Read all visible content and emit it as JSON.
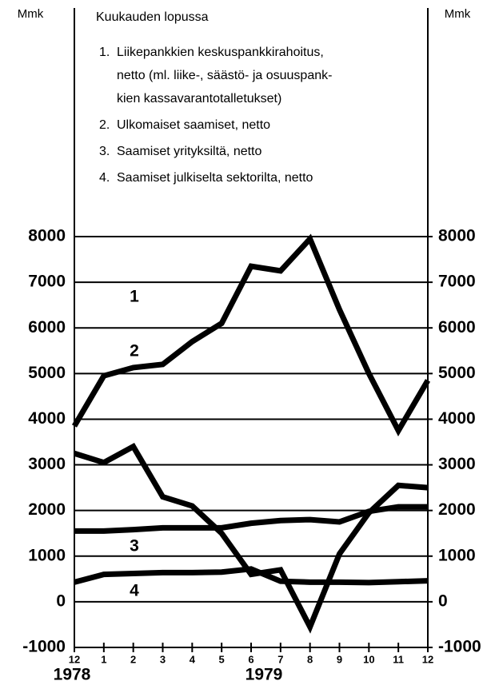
{
  "chart_data": {
    "type": "line",
    "legend_title": "Kuukauden lopussa",
    "legend_items": [
      {
        "number": "1.",
        "lines": [
          "Liikepankkien keskuspankkirahoitus,",
          "netto (ml. liike-, säästö- ja osuuspank-",
          "kien kassavarantotalletukset)"
        ]
      },
      {
        "number": "2.",
        "lines": [
          "Ulkomaiset saamiset, netto"
        ]
      },
      {
        "number": "3.",
        "lines": [
          "Saamiset yrityksiltä, netto"
        ]
      },
      {
        "number": "4.",
        "lines": [
          "Saamiset julkiselta sektorilta, netto"
        ]
      }
    ],
    "ylabel": "Mmk",
    "y2label": "Mmk",
    "categories": [
      "12",
      "1",
      "2",
      "3",
      "4",
      "5",
      "6",
      "7",
      "8",
      "9",
      "10",
      "11",
      "12"
    ],
    "year_labels": [
      "1978",
      "1979"
    ],
    "series": [
      {
        "name": "1",
        "color": "#000000",
        "values": [
          3250,
          3050,
          3400,
          2300,
          2100,
          1500,
          600,
          700,
          -550,
          1050,
          1950,
          2550,
          2500
        ]
      },
      {
        "name": "2",
        "color": "#000000",
        "values": [
          3850,
          4950,
          5130,
          5200,
          5700,
          6100,
          7350,
          7250,
          7950,
          6400,
          5000,
          3750,
          4850
        ]
      },
      {
        "name": "3",
        "color": "#000000",
        "values": [
          1550,
          1550,
          1580,
          1620,
          1620,
          1620,
          1720,
          1780,
          1800,
          1750,
          1980,
          2080,
          2080
        ]
      },
      {
        "name": "4",
        "color": "#000000",
        "values": [
          430,
          600,
          620,
          640,
          640,
          650,
          720,
          450,
          430,
          430,
          420,
          440,
          460
        ]
      }
    ],
    "ylim": [
      -1000,
      8000
    ],
    "yticks": [
      -1000,
      0,
      1000,
      2000,
      3000,
      4000,
      5000,
      6000,
      7000,
      8000
    ],
    "y2lim": [
      -1000,
      8000
    ],
    "y2ticks": [
      -1000,
      0,
      1000,
      2000,
      3000,
      4000,
      5000,
      6000,
      7000,
      8000
    ],
    "grid": true
  }
}
